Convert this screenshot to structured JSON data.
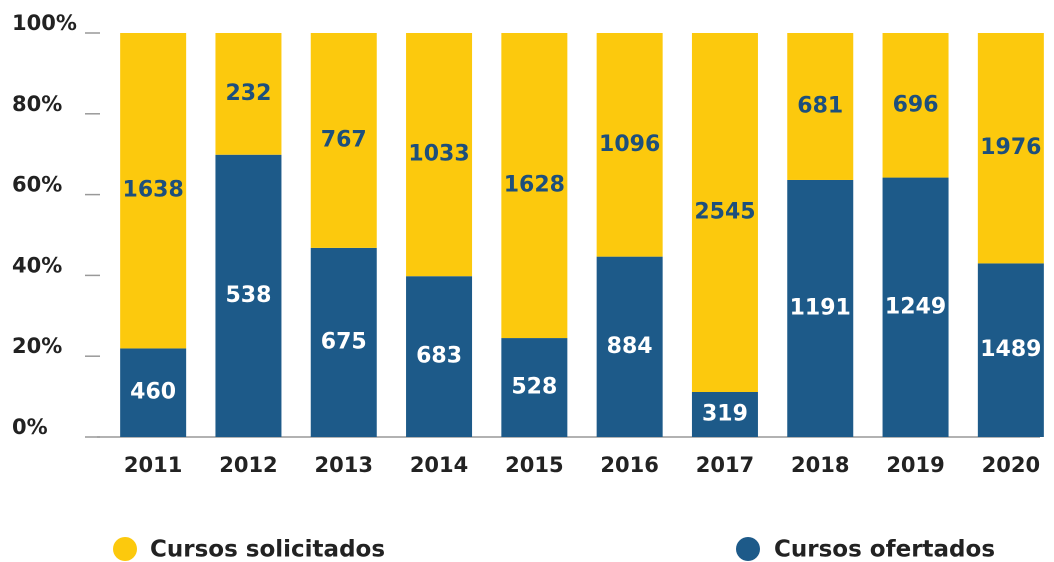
{
  "chart_data": {
    "type": "bar",
    "stacking": "percent",
    "categories": [
      "2011",
      "2012",
      "2013",
      "2014",
      "2015",
      "2016",
      "2017",
      "2018",
      "2019",
      "2020"
    ],
    "series": [
      {
        "name": "Cursos ofertados",
        "color": "#1d5a89",
        "label_color": "#ffffff",
        "values": [
          460,
          538,
          675,
          683,
          528,
          884,
          319,
          1191,
          1249,
          1489
        ]
      },
      {
        "name": "Cursos solicitados",
        "color": "#fcc90d",
        "label_color": "#1d4f7c",
        "values": [
          1638,
          232,
          767,
          1033,
          1628,
          1096,
          2545,
          681,
          696,
          1976
        ]
      }
    ],
    "ylim": [
      0,
      100
    ],
    "yticks": [
      {
        "value": 0,
        "label": "0%"
      },
      {
        "value": 20,
        "label": "20%"
      },
      {
        "value": 40,
        "label": "40%"
      },
      {
        "value": 60,
        "label": "60%"
      },
      {
        "value": 80,
        "label": "80%"
      },
      {
        "value": 100,
        "label": "100%"
      }
    ]
  }
}
